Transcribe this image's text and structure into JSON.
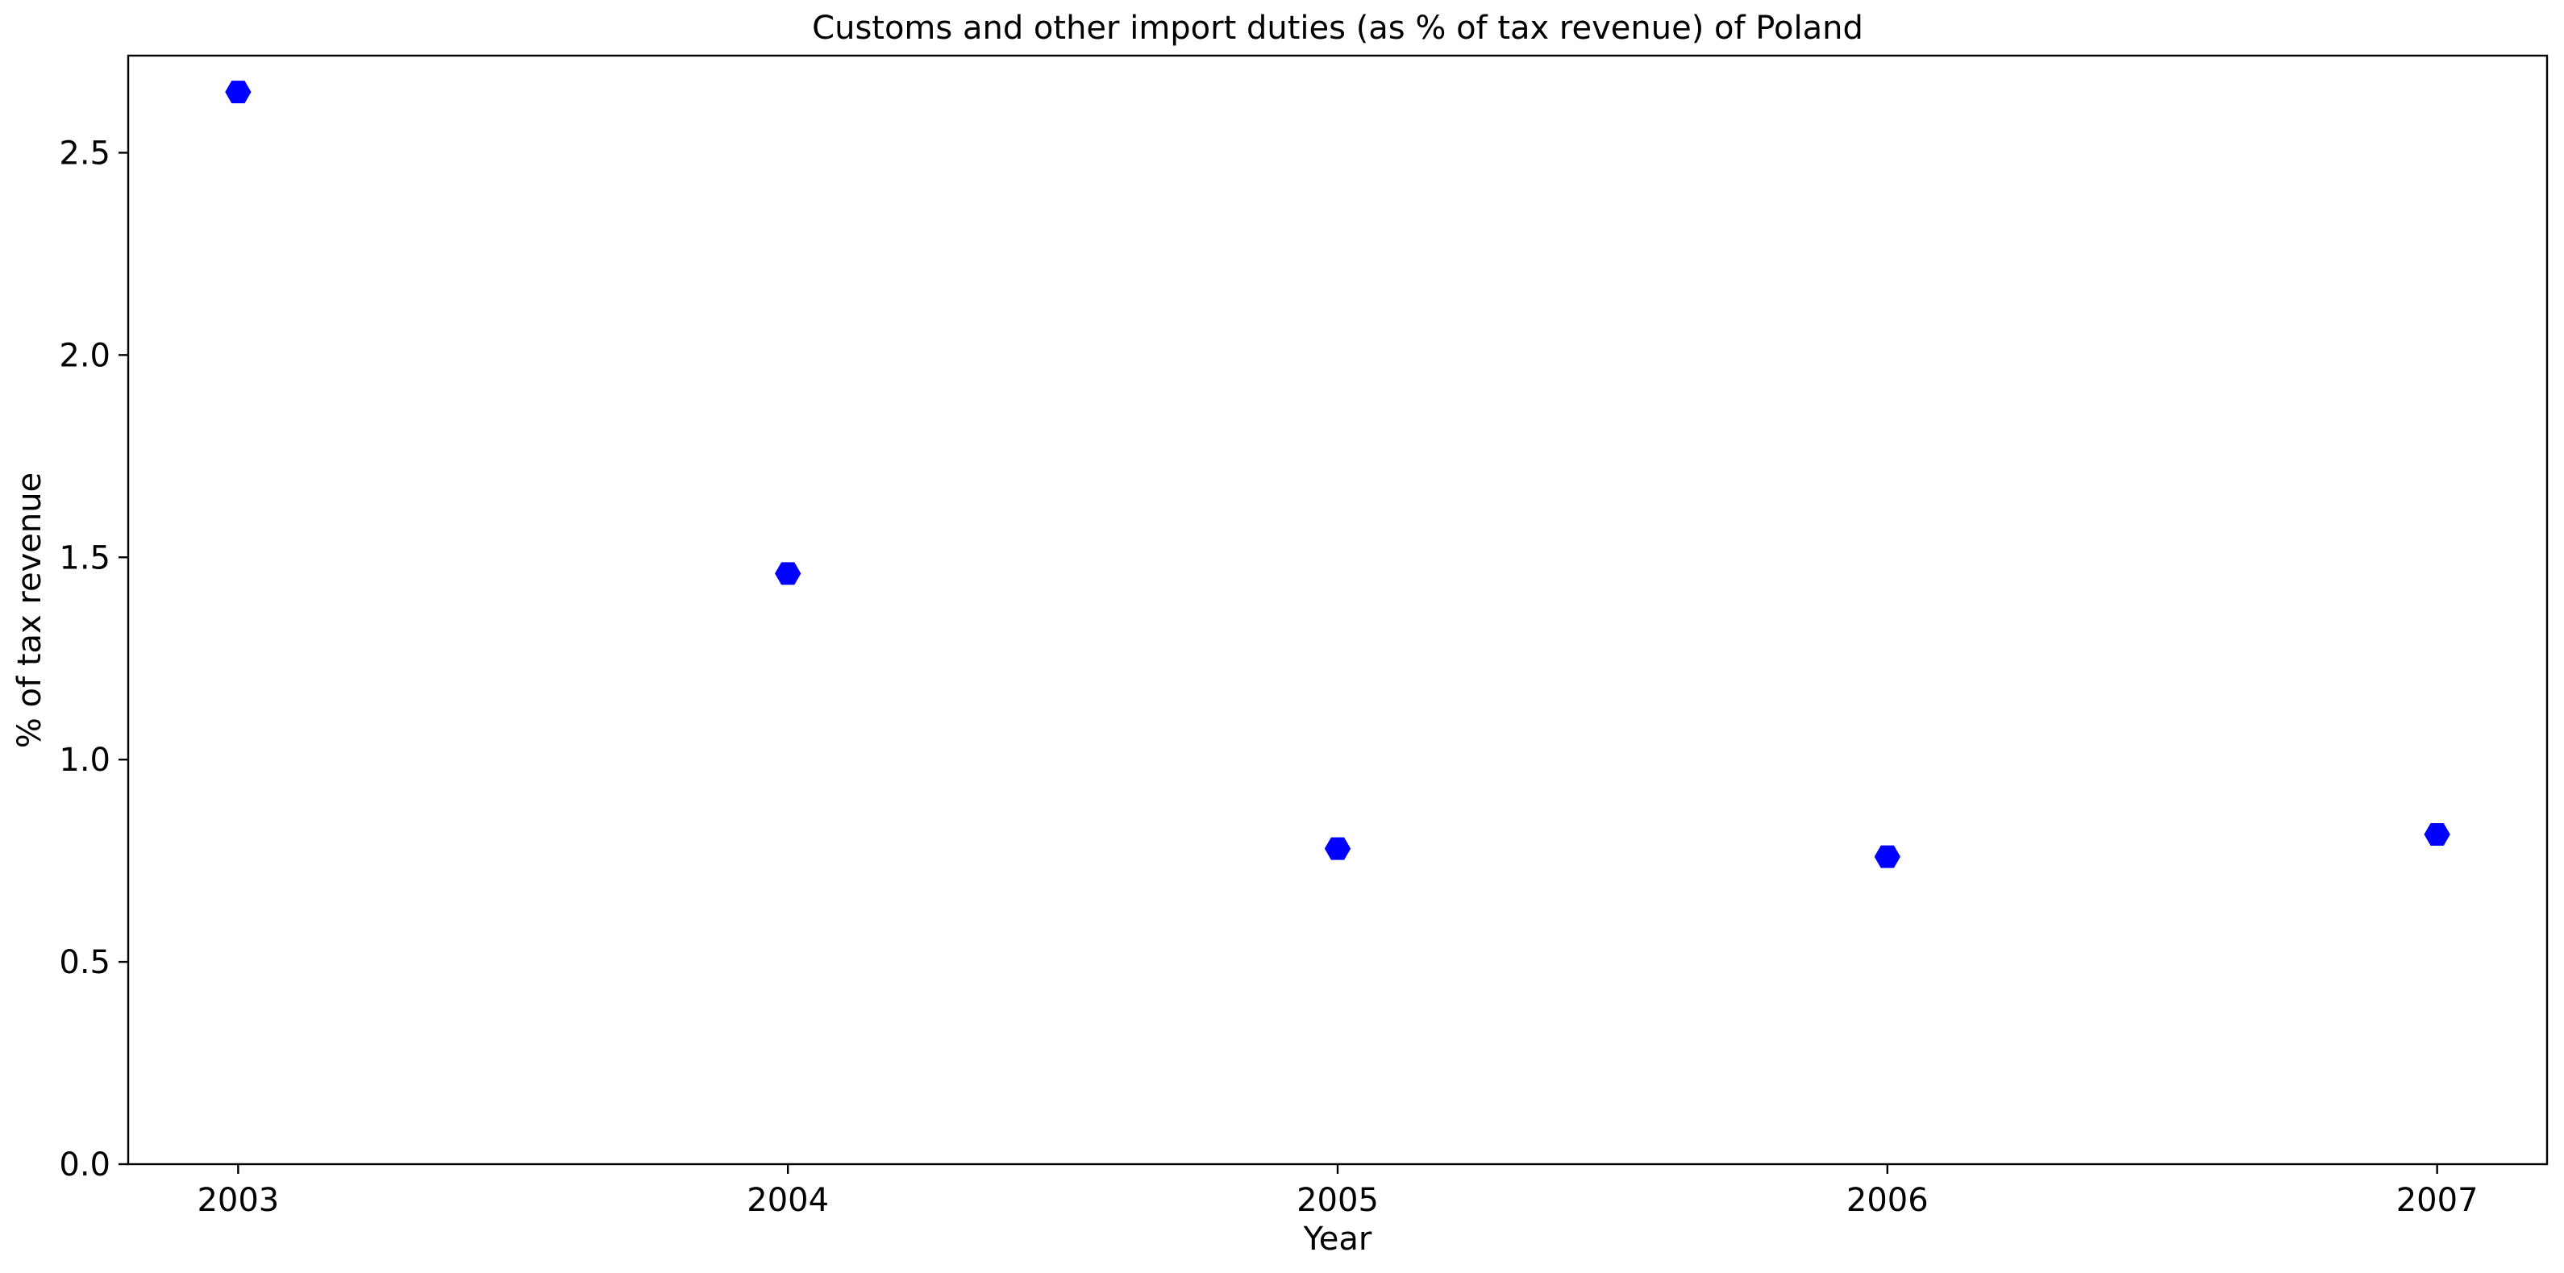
{
  "chart_data": {
    "type": "scatter",
    "title": "Customs and other import duties (as % of tax revenue) of Poland",
    "xlabel": "Year",
    "ylabel": "% of tax revenue",
    "x": [
      2003,
      2004,
      2005,
      2006,
      2007
    ],
    "series": [
      {
        "values": [
          2.65,
          1.46,
          0.78,
          0.76,
          0.815
        ],
        "color": "#0000ff",
        "marker": "hexagon"
      }
    ],
    "xlim": [
      2002.8,
      2007.2
    ],
    "ylim": [
      0,
      2.74
    ],
    "x_ticks": [
      "2003",
      "2004",
      "2005",
      "2006",
      "2007"
    ],
    "y_ticks": [
      "0.0",
      "0.5",
      "1.0",
      "1.5",
      "2.0",
      "2.5"
    ],
    "grid": false,
    "legend": "none"
  }
}
